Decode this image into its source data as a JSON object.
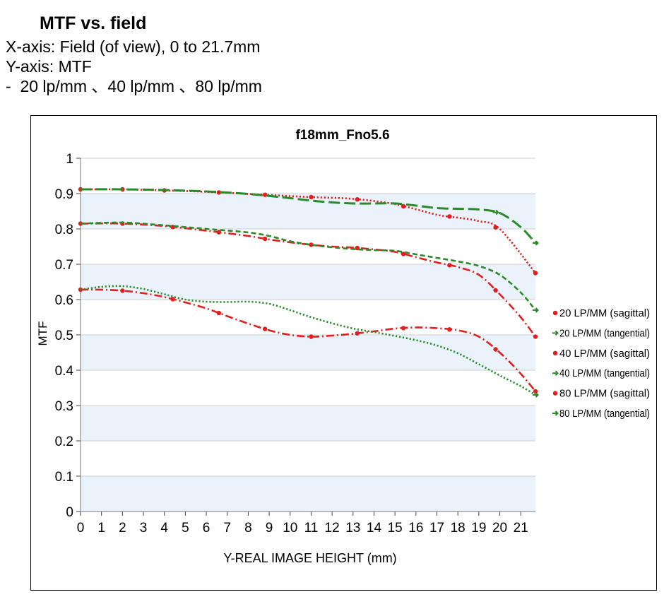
{
  "header": {
    "title": "MTF vs. field",
    "lines": [
      "X-axis: Field (of view), 0 to 21.7mm",
      "Y-axis: MTF",
      "-  20 lp/mm 、40 lp/mm 、80 lp/mm"
    ]
  },
  "chart_data": {
    "type": "line",
    "title": "f18mm_Fno5.6",
    "xlabel": "Y-REAL IMAGE HEIGHT (mm)",
    "ylabel": "MTF",
    "xlim": [
      0,
      21.7
    ],
    "ylim": [
      0,
      1
    ],
    "xticks": [
      0,
      1,
      2,
      3,
      4,
      5,
      6,
      7,
      8,
      9,
      10,
      11,
      12,
      13,
      14,
      15,
      16,
      17,
      18,
      19,
      20,
      21
    ],
    "yticks": [
      0,
      0.1,
      0.2,
      0.3,
      0.4,
      0.5,
      0.6,
      0.7,
      0.8,
      0.9,
      1
    ],
    "ytick_labels": [
      "0",
      "0.1",
      "0.2",
      "0.3",
      "0.4",
      "0.5",
      "0.6",
      "0.7",
      "0.8",
      "0.9",
      "1"
    ],
    "background_bands": true,
    "legend_position": "right",
    "colors": {
      "sagittal": "#e02020",
      "tangential": "#2a8a2a",
      "band": "#eaf3fb",
      "grid": "#cfcfcf"
    },
    "series": [
      {
        "name": "20 LP/MM (sagittal)",
        "color": "#e02020",
        "style": "dot",
        "x": [
          0,
          2,
          4,
          6,
          8,
          10,
          11,
          13,
          15,
          17,
          18,
          19,
          20,
          21.7
        ],
        "y": [
          0.912,
          0.912,
          0.909,
          0.905,
          0.899,
          0.893,
          0.89,
          0.885,
          0.87,
          0.84,
          0.832,
          0.822,
          0.8,
          0.675
        ],
        "markers": [
          0,
          2,
          4,
          6.6,
          8.8,
          11,
          13.2,
          15.4,
          17.6,
          19.8,
          21.7
        ]
      },
      {
        "name": "20 LP/MM (tangential)",
        "color": "#2a8a2a",
        "style": "longdash",
        "x": [
          0,
          2,
          4,
          6,
          8,
          10,
          11,
          12,
          13,
          14,
          15,
          16,
          17,
          18,
          19,
          20,
          21,
          21.7
        ],
        "y": [
          0.912,
          0.912,
          0.91,
          0.906,
          0.899,
          0.887,
          0.88,
          0.875,
          0.872,
          0.872,
          0.872,
          0.866,
          0.859,
          0.857,
          0.855,
          0.845,
          0.805,
          0.76
        ],
        "markers": [
          19.8,
          21.7
        ]
      },
      {
        "name": "40 LP/MM (sagittal)",
        "color": "#e02020",
        "style": "dashdot",
        "x": [
          0,
          2,
          4,
          6,
          8,
          9,
          10,
          11,
          12,
          13,
          14,
          15,
          16,
          17,
          18,
          19,
          20,
          21,
          21.7
        ],
        "y": [
          0.815,
          0.815,
          0.808,
          0.795,
          0.78,
          0.77,
          0.762,
          0.755,
          0.75,
          0.747,
          0.742,
          0.735,
          0.72,
          0.705,
          0.692,
          0.67,
          0.615,
          0.55,
          0.495
        ],
        "markers": [
          0,
          2,
          4.4,
          6.6,
          8.8,
          11,
          13.2,
          15.4,
          17.6,
          19.8,
          21.7
        ]
      },
      {
        "name": "40 LP/MM (tangential)",
        "color": "#2a8a2a",
        "style": "dash",
        "x": [
          0,
          2,
          4,
          6,
          8,
          9,
          10,
          11,
          12,
          13,
          14,
          15,
          16,
          17,
          18,
          19,
          20,
          21,
          21.7
        ],
        "y": [
          0.815,
          0.818,
          0.81,
          0.8,
          0.79,
          0.78,
          0.765,
          0.755,
          0.748,
          0.743,
          0.74,
          0.738,
          0.728,
          0.718,
          0.708,
          0.695,
          0.67,
          0.62,
          0.57
        ],
        "markers": [
          21.7
        ]
      },
      {
        "name": "80 LP/MM (sagittal)",
        "color": "#e02020",
        "style": "dashdot",
        "x": [
          0,
          1,
          2,
          3,
          4,
          5,
          6,
          7,
          8,
          9,
          10,
          11,
          12,
          13,
          14,
          15,
          16,
          17,
          18,
          19,
          20,
          21,
          21.7
        ],
        "y": [
          0.628,
          0.628,
          0.625,
          0.618,
          0.607,
          0.592,
          0.575,
          0.553,
          0.532,
          0.513,
          0.5,
          0.495,
          0.498,
          0.503,
          0.51,
          0.518,
          0.521,
          0.519,
          0.513,
          0.495,
          0.45,
          0.39,
          0.34
        ],
        "markers": [
          0,
          2,
          4.4,
          6.6,
          8.8,
          11,
          13.2,
          15.4,
          17.6,
          19.8,
          21.7
        ]
      },
      {
        "name": "80 LP/MM (tangential)",
        "color": "#2a8a2a",
        "style": "dot",
        "x": [
          0,
          1,
          2,
          3,
          4,
          5,
          6,
          7,
          8,
          9,
          10,
          11,
          12,
          13,
          14,
          15,
          16,
          17,
          18,
          19,
          20,
          21,
          21.7
        ],
        "y": [
          0.628,
          0.636,
          0.638,
          0.63,
          0.615,
          0.6,
          0.594,
          0.593,
          0.594,
          0.588,
          0.57,
          0.55,
          0.533,
          0.518,
          0.508,
          0.497,
          0.485,
          0.47,
          0.448,
          0.417,
          0.385,
          0.355,
          0.33
        ],
        "markers": [
          21.7
        ]
      }
    ]
  }
}
